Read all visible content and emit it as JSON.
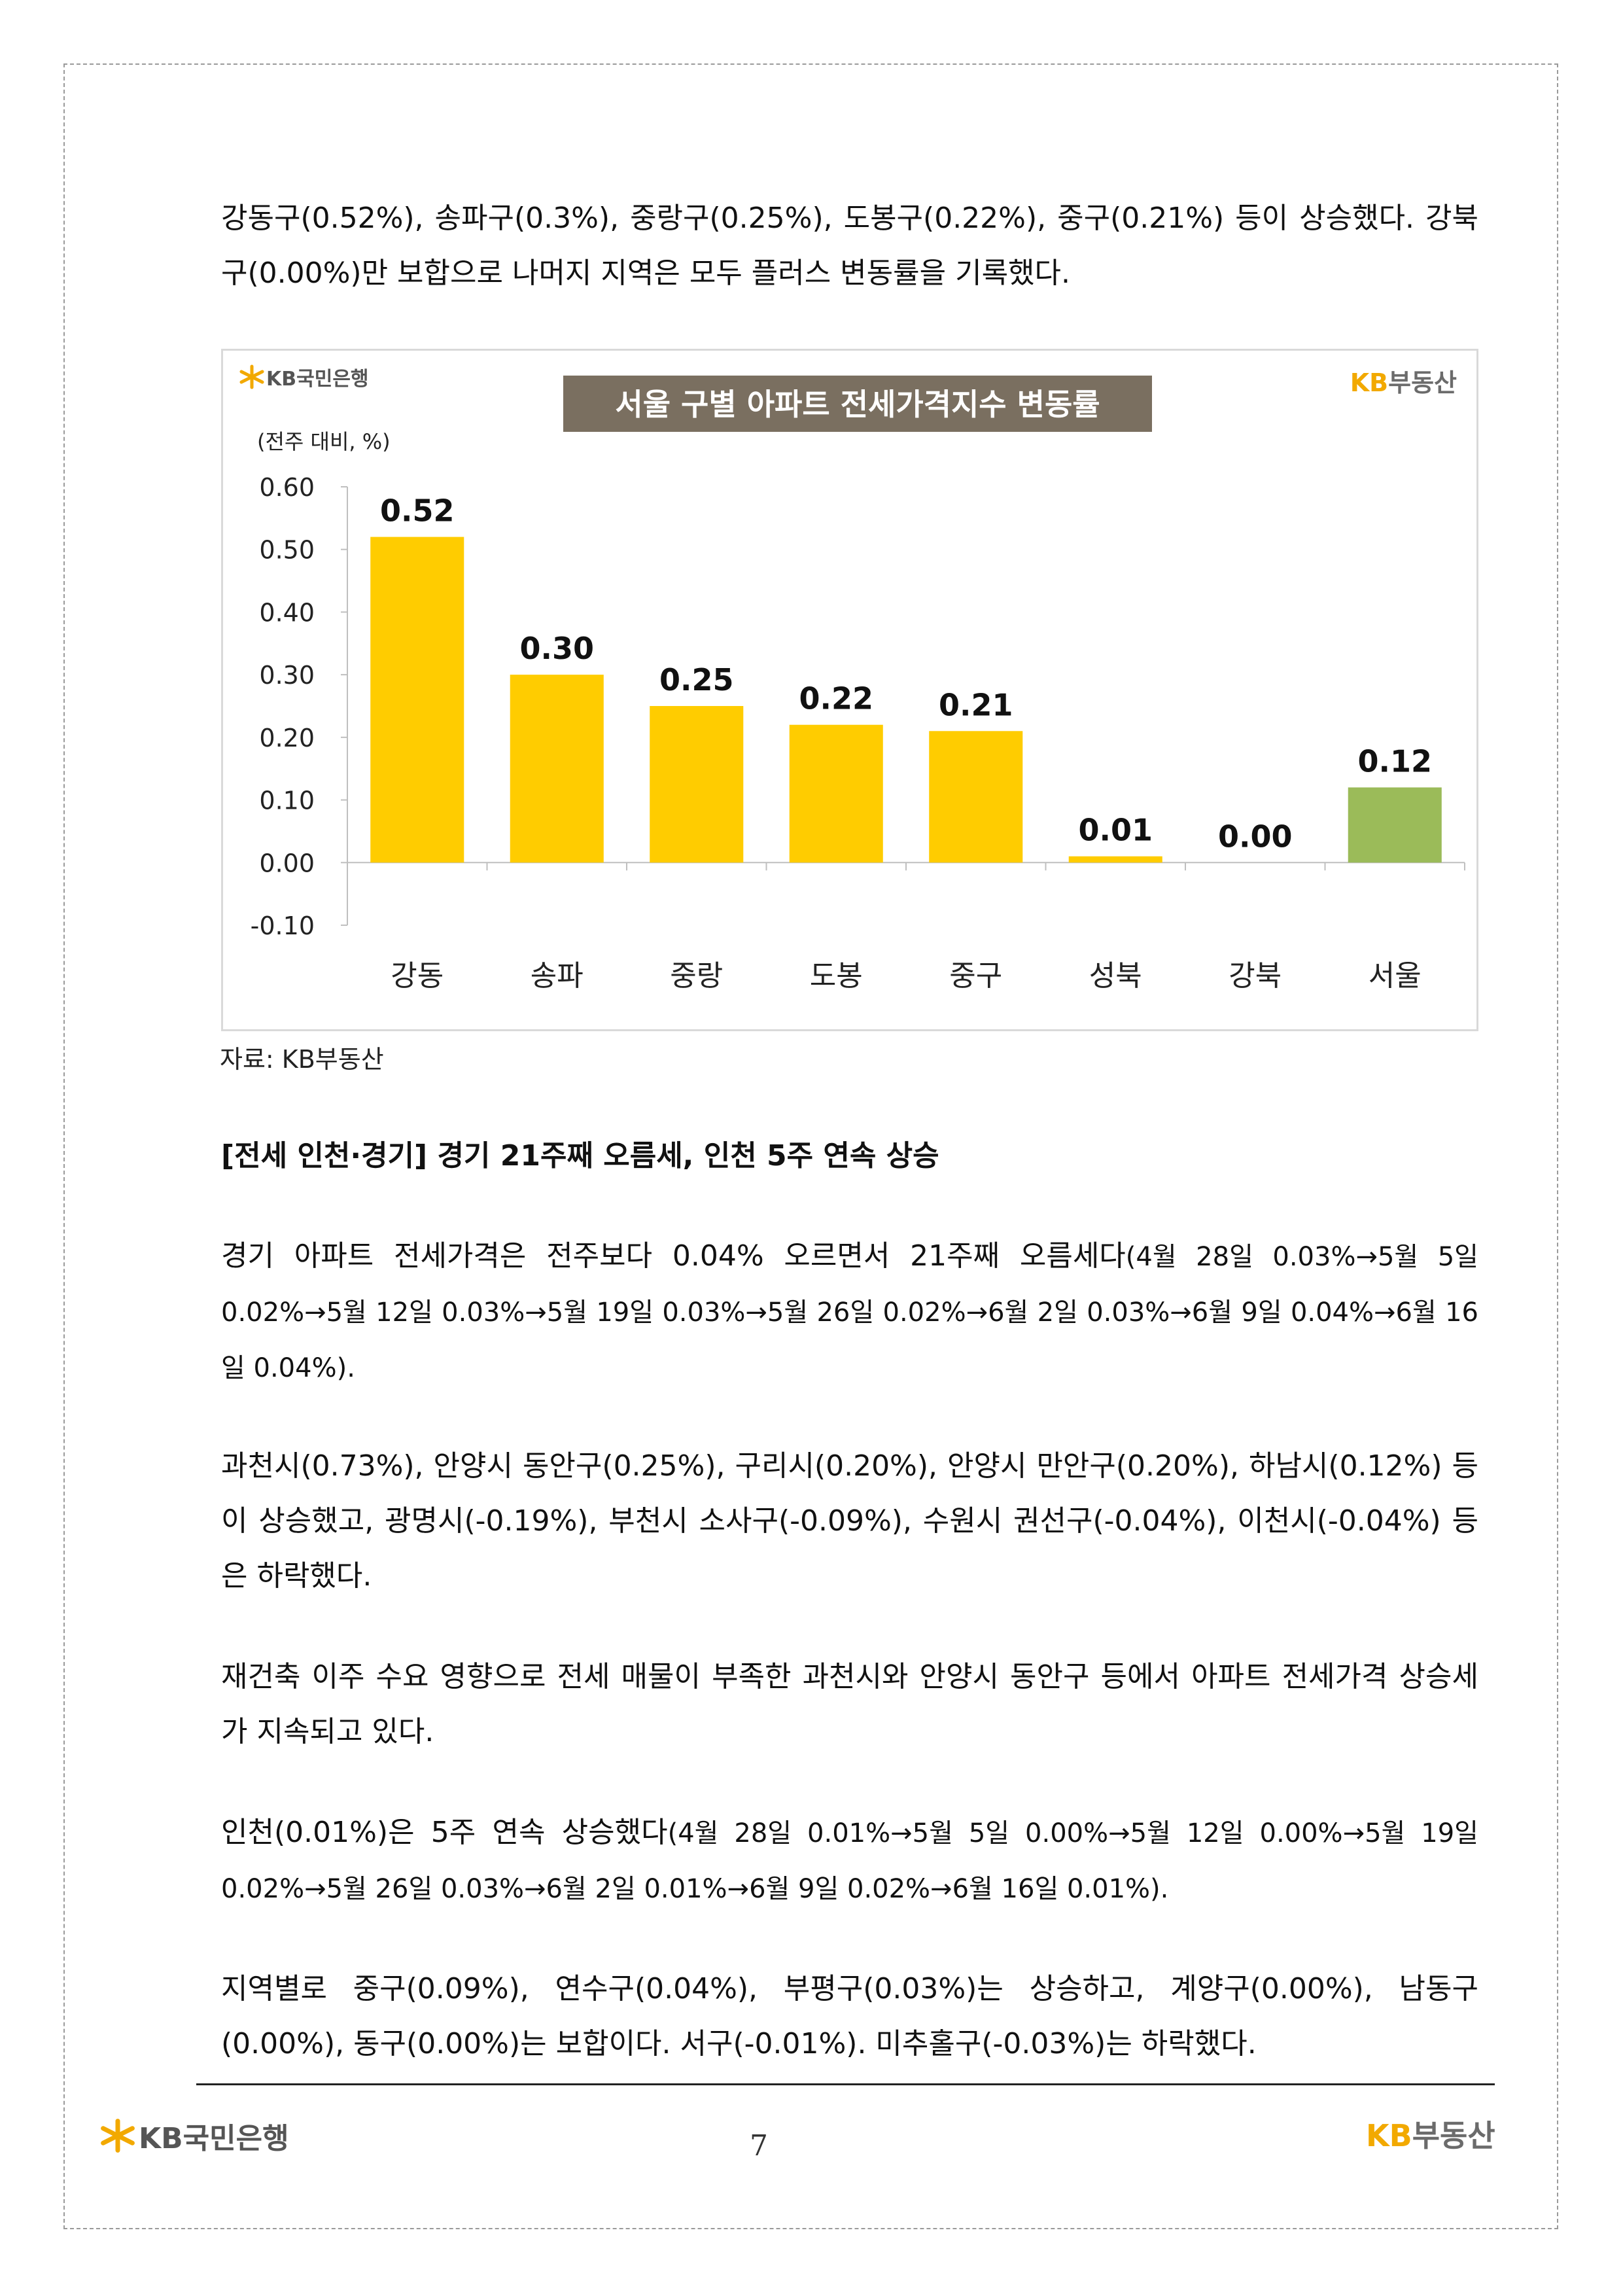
{
  "intro_paragraph": "강동구(0.52%), 송파구(0.3%), 중랑구(0.25%), 도봉구(0.22%), 중구(0.21%) 등이 상승했다. 강북구(0.00%)만 보합으로 나머지 지역은 모두 플러스 변동률을 기록했다.",
  "chart_header": {
    "bank_logo_text": "KB국민은행",
    "land_logo_kb": "KB",
    "land_logo_text": "부동산"
  },
  "chart_data": {
    "type": "bar",
    "title": "서울 구별 아파트 전세가격지수 변동률",
    "ylabel": "(전주 대비, %)",
    "categories": [
      "강동",
      "송파",
      "중랑",
      "도봉",
      "중구",
      "성북",
      "강북",
      "서울"
    ],
    "values": [
      0.52,
      0.3,
      0.25,
      0.22,
      0.21,
      0.01,
      0.0,
      0.12
    ],
    "value_labels": [
      "0.52",
      "0.30",
      "0.25",
      "0.22",
      "0.21",
      "0.01",
      "0.00",
      "0.12"
    ],
    "ylim": [
      -0.1,
      0.6
    ],
    "yticks": [
      "0.60",
      "0.50",
      "0.40",
      "0.30",
      "0.20",
      "0.10",
      "0.00",
      "-0.10"
    ],
    "ytick_values": [
      0.6,
      0.5,
      0.4,
      0.3,
      0.2,
      0.1,
      0.0,
      -0.1
    ],
    "colors": {
      "district": "#ffcc00",
      "total": "#9bbb59",
      "title_bg": "#7a6f60",
      "title_text": "#ffffff"
    },
    "total_category": "서울",
    "grid": false
  },
  "source_text": "자료: KB부동산",
  "section_heading": "[전세 인천·경기] 경기 21주째 오름세, 인천 5주 연속 상승",
  "gyeonggi_paragraph": {
    "lead": "경기 아파트 전세가격은 전주보다 0.04% 오르면서 21주째 오름세다",
    "detail": "(4월 28일 0.03%→5월 5일 0.02%→5월 12일 0.03%→5월 19일 0.03%→5월 26일 0.02%→6월 2일 0.03%→6월 9일 0.04%→6월 16일 0.04%)."
  },
  "gyeonggi_regions_paragraph": "과천시(0.73%), 안양시 동안구(0.25%), 구리시(0.20%), 안양시 만안구(0.20%), 하남시(0.12%) 등이 상승했고, 광명시(-0.19%), 부천시 소사구(-0.09%), 수원시 권선구(-0.04%), 이천시(-0.04%) 등은 하락했다.",
  "reconstruction_paragraph": "재건축 이주 수요 영향으로 전세 매물이 부족한 과천시와 안양시 동안구 등에서 아파트 전세가격 상승세가 지속되고 있다.",
  "incheon_paragraph": {
    "lead": "인천(0.01%)은 5주 연속 상승했다",
    "detail": "(4월 28일 0.01%→5월 5일 0.00%→5월 12일 0.00%→5월 19일 0.02%→5월 26일 0.03%→6월 2일 0.01%→6월 9일 0.02%→6월 16일 0.01%)."
  },
  "incheon_regions_paragraph": "지역별로 중구(0.09%), 연수구(0.04%), 부평구(0.03%)는 상승하고, 계양구(0.00%), 남동구(0.00%), 동구(0.00%)는 보합이다. 서구(-0.01%). 미추홀구(-0.03%)는 하락했다.",
  "footer": {
    "bank_logo_text": "KB국민은행",
    "land_logo_kb": "KB",
    "land_logo_text": "부동산",
    "page_number": "7"
  }
}
